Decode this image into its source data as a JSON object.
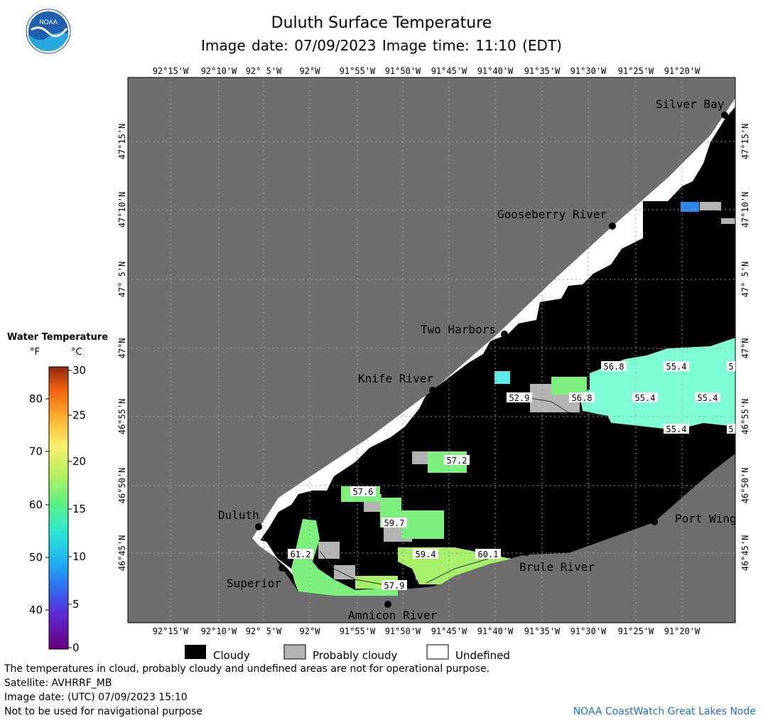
{
  "header": {
    "title": "Duluth Surface Temperature",
    "subtitle": "Image date: 07/09/2023     Image time: 11:10 (EDT)",
    "logo_text": "NOAA"
  },
  "map": {
    "lon_labels": [
      "92°15'W",
      "92°10'W",
      "92° 5'W",
      "92°W",
      "91°55'W",
      "91°50'W",
      "91°45'W",
      "91°40'W",
      "91°35'W",
      "91°30'W",
      "91°25'W",
      "91°20'W"
    ],
    "lat_labels": [
      "47°15'N",
      "47°10'N",
      "47° 5'N",
      "47°N",
      "46°55'N",
      "46°50'N",
      "46°45'N"
    ],
    "places": [
      "Silver Bay",
      "Gooseberry River",
      "Two Harbors",
      "Knife River",
      "Duluth",
      "Superior",
      "Amnicon River",
      "Brule River",
      "Port Wing"
    ],
    "temp_labels": [
      "56.8",
      "55.4",
      "5",
      "52.9",
      "56.8",
      "55.4",
      "55.4",
      "55.4",
      "5",
      "57.2",
      "57.6",
      "59.7",
      "61.2",
      "59.4",
      "60.1",
      "57.9"
    ],
    "colors": {
      "land": "#6e6e6e",
      "cloudy": "#000000",
      "probably_cloudy": "#b4b4b4",
      "undefined": "#ffffff",
      "aqua": "#7fffd4",
      "green": "#7df07d",
      "lightgreen": "#a6f06a"
    }
  },
  "legend": {
    "title": "Water Temperature",
    "f_label": "°F",
    "c_label": "°C",
    "f_ticks": [
      "80",
      "70",
      "60",
      "50",
      "40"
    ],
    "c_ticks": [
      "30",
      "25",
      "20",
      "15",
      "10",
      "5",
      "0"
    ]
  },
  "key": {
    "cloudy": "Cloudy",
    "probably_cloudy": "Probably cloudy",
    "undefined": "Undefined"
  },
  "footer": {
    "line1": "The temperatures in cloud, probably cloudy and undefined areas are not for operational purpose.",
    "line2": "Satellite: AVHRRF_MB",
    "line3": "Image date: (UTC) 07/09/2023  15:10",
    "line4": "Not to be used for navigational purpose",
    "credit": "NOAA CoastWatch Great Lakes Node"
  }
}
